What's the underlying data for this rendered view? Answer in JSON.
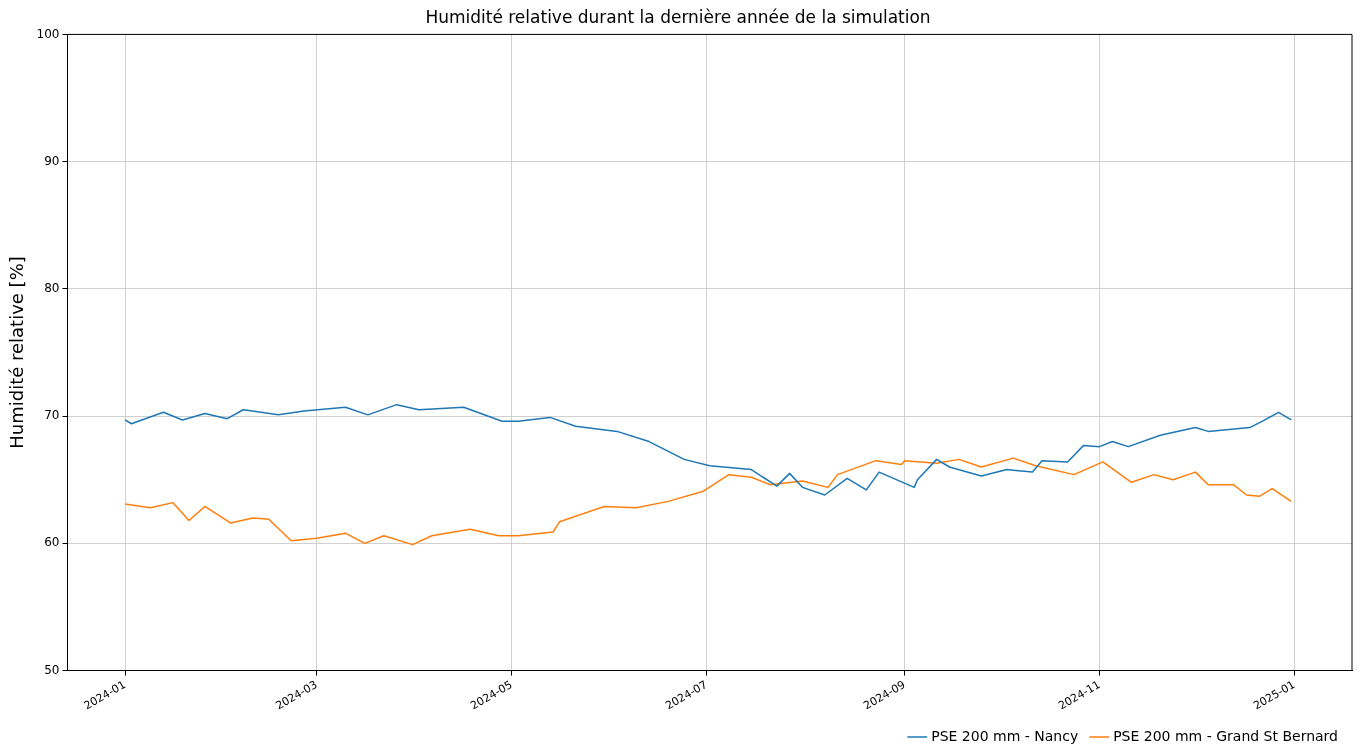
{
  "chart_data": {
    "type": "line",
    "title": "Humidité relative durant la dernière année de la simulation",
    "ylabel": "Humidité relative [%]",
    "xlim": [
      "2023-12-14",
      "2025-01-19"
    ],
    "xticks": [
      {
        "value": "2024-01-01",
        "label": "2024-01"
      },
      {
        "value": "2024-03-01",
        "label": "2024-03"
      },
      {
        "value": "2024-05-01",
        "label": "2024-05"
      },
      {
        "value": "2024-07-01",
        "label": "2024-07"
      },
      {
        "value": "2024-09-01",
        "label": "2024-09"
      },
      {
        "value": "2024-11-01",
        "label": "2024-11"
      },
      {
        "value": "2025-01-01",
        "label": "2025-01"
      }
    ],
    "ylim": [
      50,
      100
    ],
    "yticks": [
      50,
      60,
      70,
      80,
      90,
      100
    ],
    "grid": true,
    "legend": "bottom right",
    "marker": "none",
    "line_style": "solid",
    "series": [
      {
        "name": "PSE 200 mm - Nancy",
        "color": "#1f77b4",
        "x": [
          "2024-01-01",
          "2024-01-03",
          "2024-01-13",
          "2024-01-19",
          "2024-01-26",
          "2024-02-02",
          "2024-02-07",
          "2024-02-18",
          "2024-02-26",
          "2024-03-10",
          "2024-03-17",
          "2024-03-26",
          "2024-04-02",
          "2024-04-16",
          "2024-04-28",
          "2024-05-03",
          "2024-05-13",
          "2024-05-21",
          "2024-06-03",
          "2024-06-13",
          "2024-06-24",
          "2024-07-02",
          "2024-07-15",
          "2024-07-23",
          "2024-07-27",
          "2024-07-31",
          "2024-08-07",
          "2024-08-14",
          "2024-08-20",
          "2024-08-24",
          "2024-09-04",
          "2024-09-05",
          "2024-09-11",
          "2024-09-15",
          "2024-09-25",
          "2024-10-03",
          "2024-10-11",
          "2024-10-14",
          "2024-10-22",
          "2024-10-27",
          "2024-11-01",
          "2024-11-05",
          "2024-11-10",
          "2024-11-20",
          "2024-12-01",
          "2024-12-05",
          "2024-12-18",
          "2024-12-22",
          "2024-12-27",
          "2024-12-31"
        ],
        "values": [
          69.7,
          69.4,
          70.3,
          69.7,
          70.2,
          69.8,
          70.5,
          70.1,
          70.4,
          70.7,
          70.1,
          70.9,
          70.5,
          70.7,
          69.6,
          69.6,
          69.9,
          69.2,
          68.8,
          68.0,
          66.6,
          66.1,
          65.8,
          64.5,
          65.5,
          64.4,
          63.8,
          65.1,
          64.2,
          65.6,
          64.4,
          65.0,
          66.6,
          66.0,
          65.3,
          65.8,
          65.6,
          66.5,
          66.4,
          67.7,
          67.6,
          68.0,
          67.6,
          68.5,
          69.1,
          68.8,
          69.1,
          69.6,
          70.3,
          69.7
        ]
      },
      {
        "name": "PSE 200 mm - Grand St Bernard",
        "color": "#ff7f0e",
        "x": [
          "2024-01-01",
          "2024-01-09",
          "2024-01-16",
          "2024-01-21",
          "2024-01-26",
          "2024-02-03",
          "2024-02-10",
          "2024-02-15",
          "2024-02-22",
          "2024-03-01",
          "2024-03-10",
          "2024-03-16",
          "2024-03-22",
          "2024-03-31",
          "2024-04-06",
          "2024-04-18",
          "2024-04-27",
          "2024-05-03",
          "2024-05-14",
          "2024-05-16",
          "2024-05-30",
          "2024-06-09",
          "2024-06-19",
          "2024-06-30",
          "2024-07-08",
          "2024-07-15",
          "2024-07-21",
          "2024-07-31",
          "2024-08-08",
          "2024-08-11",
          "2024-08-23",
          "2024-08-31",
          "2024-09-01",
          "2024-09-11",
          "2024-09-18",
          "2024-09-25",
          "2024-10-05",
          "2024-10-12",
          "2024-10-24",
          "2024-11-02",
          "2024-11-11",
          "2024-11-18",
          "2024-11-24",
          "2024-12-01",
          "2024-12-05",
          "2024-12-13",
          "2024-12-17",
          "2024-12-21",
          "2024-12-25",
          "2024-12-31"
        ],
        "values": [
          63.1,
          62.8,
          63.2,
          61.8,
          62.9,
          61.6,
          62.0,
          61.9,
          60.2,
          60.4,
          60.8,
          60.0,
          60.6,
          59.9,
          60.6,
          61.1,
          60.6,
          60.6,
          60.9,
          61.7,
          62.9,
          62.8,
          63.3,
          64.1,
          65.4,
          65.2,
          64.6,
          64.9,
          64.4,
          65.4,
          66.5,
          66.2,
          66.5,
          66.3,
          66.6,
          66.0,
          66.7,
          66.1,
          65.4,
          66.4,
          64.8,
          65.4,
          65.0,
          65.6,
          64.6,
          64.6,
          63.8,
          63.7,
          64.3,
          63.3
        ]
      }
    ]
  }
}
